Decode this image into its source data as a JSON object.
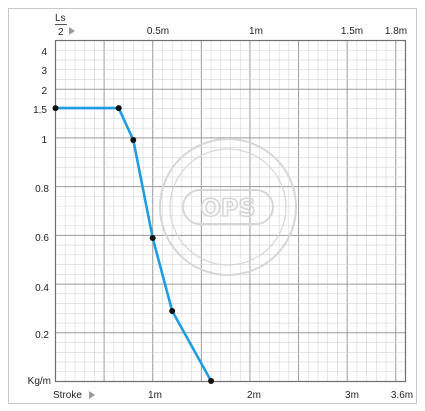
{
  "chart_data": {
    "type": "line",
    "ylabel_top": "Ls",
    "ylabel_bottom": "2",
    "y_unit": "Kg/m",
    "x_word": "Stroke",
    "top_ticks": [
      "0.5m",
      "1m",
      "1.5m",
      "1.8m"
    ],
    "bottom_ticks": [
      "1m",
      "2m",
      "3m",
      "3.6m"
    ],
    "y_ticks_upper": [
      "4",
      "3",
      "2",
      "1.5",
      "1"
    ],
    "y_ticks_lower": [
      "0.8",
      "0.6",
      "0.4",
      "0.2"
    ],
    "series_color": "#1f9de0",
    "watermark": "OPS",
    "stroke_range_m": [
      0,
      3.6
    ],
    "series": [
      {
        "points": [
          {
            "stroke_m": 0.0,
            "load_kg_m": 1.55
          },
          {
            "stroke_m": 0.65,
            "load_kg_m": 1.55
          },
          {
            "stroke_m": 0.8,
            "load_kg_m": 1.0
          },
          {
            "stroke_m": 1.0,
            "load_kg_m": 0.6
          },
          {
            "stroke_m": 1.2,
            "load_kg_m": 0.3
          },
          {
            "stroke_m": 1.6,
            "load_kg_m": 0.0
          }
        ]
      }
    ]
  }
}
